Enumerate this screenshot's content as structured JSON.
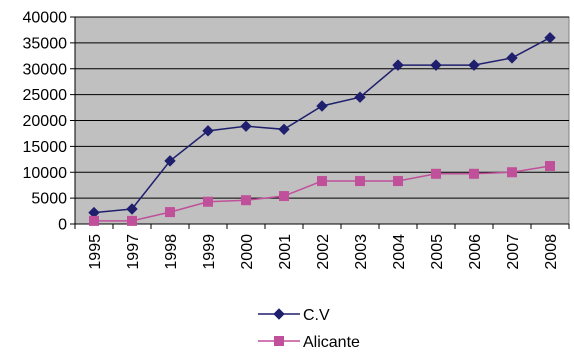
{
  "chart_data": {
    "type": "line",
    "categories": [
      "1995",
      "1997",
      "1998",
      "1999",
      "2000",
      "2001",
      "2002",
      "2003",
      "2004",
      "2005",
      "2006",
      "2007",
      "2008"
    ],
    "ylim": [
      0,
      40000
    ],
    "yticks": [
      0,
      5000,
      10000,
      15000,
      20000,
      25000,
      30000,
      35000,
      40000
    ],
    "grid": true,
    "legend_position": "bottom",
    "series": [
      {
        "name": "C.V",
        "marker": "diamond",
        "color": "#1f1f6e",
        "values": [
          2200,
          2900,
          12200,
          18000,
          18900,
          18300,
          22800,
          24500,
          30700,
          30700,
          30700,
          32100,
          36000
        ]
      },
      {
        "name": "Alicante",
        "marker": "square",
        "color": "#c0509a",
        "values": [
          600,
          600,
          2300,
          4300,
          4600,
          5400,
          8300,
          8300,
          8300,
          9700,
          9700,
          10000,
          11200
        ]
      }
    ],
    "plot_background": "#c0c0c0"
  }
}
